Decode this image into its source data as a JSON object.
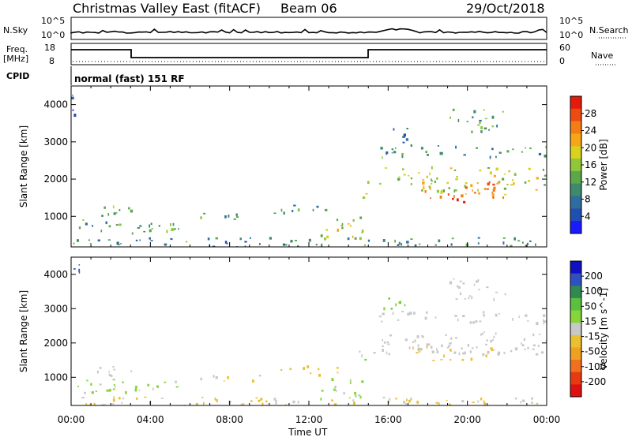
{
  "header": {
    "title": "Christmas Valley East (fitACF)",
    "beam": "Beam 06",
    "date": "29/Oct/2018"
  },
  "params": {
    "nsky_label": "N.Sky",
    "nsky_ticks": [
      "10^5",
      "10^0"
    ],
    "nsearch_label": "N.Search",
    "freq_label": "Freq.",
    "freq_unit": "[MHz]",
    "freq_ticks": [
      "18",
      "8"
    ],
    "nave_label": "Nave",
    "nave_ticks": [
      "60",
      "0"
    ],
    "cpid_label": "CPID",
    "cpid_value": "normal (fast) 151 RF"
  },
  "colors": {
    "power": [
      "#1a1aff",
      "#1f4fb0",
      "#2e6e9e",
      "#3f8a6a",
      "#5aa84a",
      "#8fc63a",
      "#d8d21c",
      "#f7a617",
      "#f57d17",
      "#ee4b12",
      "#e61a0a"
    ],
    "velocity": [
      "#1010c0",
      "#3050c0",
      "#2e8a50",
      "#5ac040",
      "#86d63a",
      "#c8c8c8",
      "#e8c030",
      "#f0a020",
      "#f07020",
      "#e83a10",
      "#e01010"
    ]
  },
  "chart_data": [
    {
      "type": "heatmap",
      "name": "power-panel",
      "ylabel": "Slant Range [km]",
      "xlabel": "Time UT",
      "x_ticks": [
        "00:00",
        "04:00",
        "08:00",
        "12:00",
        "16:00",
        "20:00",
        "00:00"
      ],
      "x_hours": [
        0,
        4,
        8,
        12,
        16,
        20,
        24
      ],
      "y_ticks": [
        1000,
        2000,
        3000,
        4000
      ],
      "ylim": [
        180,
        4500
      ],
      "colorbar": {
        "label": "Power [dB]",
        "ticks": [
          4,
          8,
          12,
          16,
          20,
          24,
          28
        ],
        "range": [
          0,
          32
        ]
      },
      "regions": [
        {
          "h0": 0.0,
          "h1": 0.4,
          "r0": 3600,
          "r1": 4400,
          "v": 6
        },
        {
          "h0": 0.3,
          "h1": 5.5,
          "r0": 550,
          "r1": 950,
          "v": 12
        },
        {
          "h0": 1.2,
          "h1": 3.2,
          "r0": 1000,
          "r1": 1350,
          "v": 12
        },
        {
          "h0": 2.0,
          "h1": 3.0,
          "r0": 1150,
          "r1": 1300,
          "v": 14
        },
        {
          "h0": 3.2,
          "h1": 4.2,
          "r0": 650,
          "r1": 850,
          "v": 10
        },
        {
          "h0": 6.5,
          "h1": 9.5,
          "r0": 900,
          "r1": 1100,
          "v": 12
        },
        {
          "h0": 10.0,
          "h1": 13.5,
          "r0": 1100,
          "r1": 1350,
          "v": 12
        },
        {
          "h0": 12.5,
          "h1": 14.7,
          "r0": 400,
          "r1": 1000,
          "v": 18
        },
        {
          "h0": 13.0,
          "h1": 14.0,
          "r0": 700,
          "r1": 900,
          "v": 26
        },
        {
          "h0": 0.0,
          "h1": 24.0,
          "r0": 180,
          "r1": 450,
          "v": 10
        },
        {
          "h0": 14.5,
          "h1": 15.0,
          "r0": 1500,
          "r1": 2100,
          "v": 20
        },
        {
          "h0": 15.0,
          "h1": 24.0,
          "r0": 1700,
          "r1": 2350,
          "v": 17
        },
        {
          "h0": 17.0,
          "h1": 22.0,
          "r0": 1500,
          "r1": 1950,
          "v": 24
        },
        {
          "h0": 18.5,
          "h1": 20.5,
          "r0": 1400,
          "r1": 1700,
          "v": 28
        },
        {
          "h0": 15.5,
          "h1": 24.0,
          "r0": 2600,
          "r1": 2950,
          "v": 11
        },
        {
          "h0": 19.0,
          "h1": 22.0,
          "r0": 3300,
          "r1": 3900,
          "v": 12
        },
        {
          "h0": 15.5,
          "h1": 17.0,
          "r0": 3000,
          "r1": 3400,
          "v": 8
        }
      ]
    },
    {
      "type": "heatmap",
      "name": "velocity-panel",
      "ylabel": "Slant Range [km]",
      "xlabel": "Time UT",
      "x_ticks": [
        "00:00",
        "04:00",
        "08:00",
        "12:00",
        "16:00",
        "20:00",
        "00:00"
      ],
      "x_hours": [
        0,
        4,
        8,
        12,
        16,
        20,
        24
      ],
      "y_ticks": [
        1000,
        2000,
        3000,
        4000
      ],
      "ylim": [
        180,
        4500
      ],
      "colorbar": {
        "label": "Velocity [m s^-1]",
        "ticks": [
          200,
          100,
          50,
          15,
          -15,
          -50,
          -100,
          -200
        ],
        "range": [
          -250,
          250
        ]
      },
      "regions": [
        {
          "h0": 0.0,
          "h1": 0.4,
          "r0": 3600,
          "r1": 4400,
          "v": 180
        },
        {
          "h0": 0.3,
          "h1": 5.5,
          "r0": 550,
          "r1": 950,
          "v": 30
        },
        {
          "h0": 1.2,
          "h1": 3.2,
          "r0": 1000,
          "r1": 1350,
          "v": 0
        },
        {
          "h0": 3.2,
          "h1": 4.2,
          "r0": 650,
          "r1": 850,
          "v": 40
        },
        {
          "h0": 6.5,
          "h1": 9.5,
          "r0": 900,
          "r1": 1100,
          "v": -30
        },
        {
          "h0": 10.0,
          "h1": 13.5,
          "r0": 1100,
          "r1": 1350,
          "v": -40
        },
        {
          "h0": 12.5,
          "h1": 14.7,
          "r0": 400,
          "r1": 1000,
          "v": 30
        },
        {
          "h0": 0.0,
          "h1": 24.0,
          "r0": 180,
          "r1": 450,
          "v": -25
        },
        {
          "h0": 14.5,
          "h1": 15.0,
          "r0": 1500,
          "r1": 2100,
          "v": 30
        },
        {
          "h0": 15.0,
          "h1": 24.0,
          "r0": 1700,
          "r1": 2350,
          "v": 0
        },
        {
          "h0": 17.0,
          "h1": 22.0,
          "r0": 1500,
          "r1": 1950,
          "v": -20
        },
        {
          "h0": 15.5,
          "h1": 24.0,
          "r0": 2600,
          "r1": 2950,
          "v": 0
        },
        {
          "h0": 19.0,
          "h1": 22.0,
          "r0": 3300,
          "r1": 3900,
          "v": 5
        },
        {
          "h0": 15.5,
          "h1": 17.0,
          "r0": 3000,
          "r1": 3400,
          "v": 60
        }
      ]
    }
  ]
}
